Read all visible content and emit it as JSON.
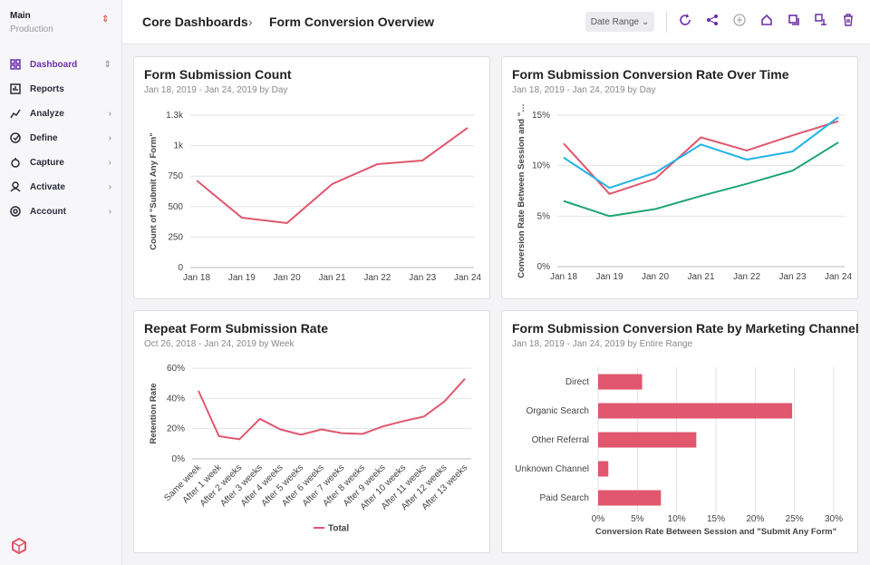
{
  "sidebar": {
    "workspace": "Main",
    "environment": "Production",
    "nav": [
      "Dashboard",
      "Reports",
      "Analyze",
      "Define",
      "Capture",
      "Activate",
      "Account"
    ]
  },
  "header": {
    "breadcrumb": [
      "Core Dashboards",
      "Form Conversion Overview"
    ],
    "date_button": "Date Range"
  },
  "charts": [
    {
      "type": "line",
      "title": "Form Submission Count",
      "subtitle": "Jan 18, 2019 - Jan 24, 2019 by Day",
      "y_label": "Count of \"Submit Any Form\"",
      "categories": [
        "Jan 18",
        "Jan 19",
        "Jan 20",
        "Jan 21",
        "Jan 22",
        "Jan 23",
        "Jan 24"
      ],
      "series": [
        {
          "color": "#e0576e",
          "values": [
            714,
            409,
            365,
            685,
            848,
            878,
            1146
          ]
        }
      ],
      "ylim": [
        0,
        1250
      ],
      "yticks": [
        0,
        250,
        500,
        750,
        {
          "value": 1000,
          "label": "1k"
        },
        {
          "value": 1250,
          "label": "1.3k"
        }
      ],
      "grid": true
    },
    {
      "type": "line",
      "title": "Form Submission Conversion Rate Over Time",
      "subtitle": "Jan 18, 2019 - Jan 24, 2019 by Day",
      "y_label": "Conversion Rate Between Session and \"…",
      "categories": [
        "Jan 18",
        "Jan 19",
        "Jan 20",
        "Jan 21",
        "Jan 22",
        "Jan 23",
        "Jan 24"
      ],
      "series": [
        {
          "color": "#e0576e",
          "values": [
            12.2,
            7.2,
            8.7,
            12.8,
            11.5,
            13.0,
            14.4
          ]
        },
        {
          "color": "#1fb3e8",
          "values": [
            10.8,
            7.8,
            9.3,
            12.1,
            10.6,
            11.4,
            14.8
          ]
        },
        {
          "color": "#1ea672",
          "values": [
            6.5,
            5.0,
            5.7,
            7.0,
            8.2,
            9.5,
            12.3
          ]
        }
      ],
      "ylim": [
        0,
        15
      ],
      "yticks": [
        {
          "value": 0,
          "label": "0%"
        },
        {
          "value": 5,
          "label": "5%"
        },
        {
          "value": 10,
          "label": "10%"
        },
        {
          "value": 15,
          "label": "15%"
        }
      ],
      "grid": true
    },
    {
      "type": "line",
      "title": "Repeat Form Submission Rate",
      "subtitle": "Oct 26, 2018 - Jan 24, 2019 by Week",
      "y_label": "Retention Rate",
      "categories": [
        "Same week",
        "After 1 week",
        "After 2 weeks",
        "After 3 weeks",
        "After 4 weeks",
        "After 5 weeks",
        "After 6 weeks",
        "After 7 weeks",
        "After 8 weeks",
        "After 9 weeks",
        "After 10 weeks",
        "After 11 weeks",
        "After 12 weeks",
        "After 13 weeks"
      ],
      "series": [
        {
          "name": "Total",
          "color": "#e0576e",
          "values": [
            45,
            15,
            13,
            26.5,
            19.5,
            16,
            19.5,
            17,
            16.5,
            21.5,
            25,
            28,
            38,
            53
          ]
        }
      ],
      "ylim": [
        0,
        60
      ],
      "yticks": [
        {
          "value": 0,
          "label": "0%"
        },
        {
          "value": 20,
          "label": "20%"
        },
        {
          "value": 40,
          "label": "40%"
        },
        {
          "value": 60,
          "label": "60%"
        }
      ],
      "grid": true
    },
    {
      "type": "hbar",
      "title": "Form Submission Conversion Rate by Marketing Channel",
      "subtitle": "Jan 18, 2019 - Jan 24, 2019 by Entire Range",
      "x_label": "Conversion Rate Between Session and \"Submit Any Form\"",
      "categories": [
        "Direct",
        "Organic Search",
        "Other Referral",
        "Unknown Channel",
        "Paid Search"
      ],
      "values": [
        5.6,
        24.7,
        12.5,
        1.3,
        8.0
      ],
      "color": "#e0576e",
      "xlim": [
        0,
        30
      ],
      "xticks": [
        {
          "value": 0,
          "label": "0%"
        },
        {
          "value": 5,
          "label": "5%"
        },
        {
          "value": 10,
          "label": "10%"
        },
        {
          "value": 15,
          "label": "15%"
        },
        {
          "value": 20,
          "label": "20%"
        },
        {
          "value": 25,
          "label": "25%"
        },
        {
          "value": 30,
          "label": "30%"
        }
      ],
      "grid": true
    }
  ]
}
